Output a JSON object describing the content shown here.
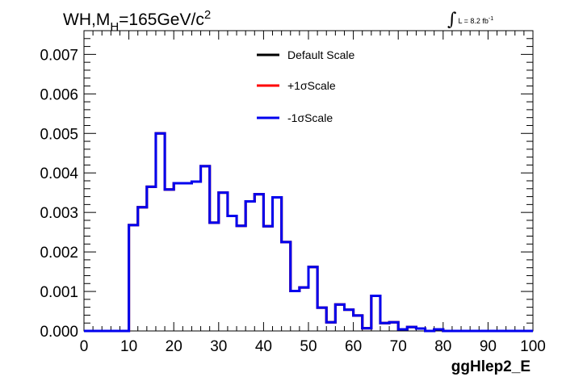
{
  "title": {
    "prefix": "WH,M",
    "sub": "H",
    "main": "=165GeV/c",
    "sup": "2"
  },
  "luminosity": {
    "symbol": "∫",
    "text": "L = 8.2 fb",
    "sup": "-1"
  },
  "chart_data": {
    "type": "line",
    "xlabel": "ggHlep2_E",
    "ylabel": "",
    "xlim": [
      0,
      100
    ],
    "ylim": [
      0,
      0.0076
    ],
    "x_ticks": [
      "0",
      "10",
      "20",
      "30",
      "40",
      "50",
      "60",
      "70",
      "80",
      "90",
      "100"
    ],
    "y_ticks": [
      "0.000",
      "0.001",
      "0.002",
      "0.003",
      "0.004",
      "0.005",
      "0.006",
      "0.007"
    ],
    "bin_width": 2,
    "bin_edges_start": 0,
    "legend_position": "top-center",
    "series": [
      {
        "name": "Default Scale",
        "color": "#000000",
        "values": [
          0,
          0,
          0,
          0,
          0,
          0.00268,
          0.00313,
          0.00365,
          0.005,
          0.00358,
          0.00374,
          0.00374,
          0.00378,
          0.00417,
          0.00274,
          0.0035,
          0.00291,
          0.00266,
          0.00328,
          0.00346,
          0.00265,
          0.00338,
          0.00225,
          0.00101,
          0.0011,
          0.00162,
          0.00059,
          0.00022,
          0.00067,
          0.00054,
          0.00039,
          7e-05,
          0.00089,
          0.0002,
          0.00022,
          4e-05,
          0.0001,
          6e-05,
          0,
          4e-05,
          0,
          0,
          0,
          0,
          0,
          0,
          0,
          0,
          0,
          0
        ]
      },
      {
        "name": "+1σScale",
        "color": "#ff0000",
        "values": [
          0,
          0,
          0,
          0,
          0,
          0.00268,
          0.00313,
          0.00365,
          0.005,
          0.00358,
          0.00374,
          0.00374,
          0.00378,
          0.00417,
          0.00274,
          0.0035,
          0.00291,
          0.00266,
          0.00328,
          0.00346,
          0.00265,
          0.00338,
          0.00225,
          0.00101,
          0.0011,
          0.00162,
          0.00059,
          0.00022,
          0.00067,
          0.00054,
          0.00039,
          7e-05,
          0.00089,
          0.0002,
          0.00022,
          4e-05,
          0.0001,
          6e-05,
          0,
          4e-05,
          0,
          0,
          0,
          0,
          0,
          0,
          0,
          0,
          0,
          0
        ]
      },
      {
        "name": "-1σScale",
        "color": "#0000ee",
        "values": [
          0,
          0,
          0,
          0,
          0,
          0.00268,
          0.00313,
          0.00365,
          0.005,
          0.00358,
          0.00374,
          0.00374,
          0.00378,
          0.00417,
          0.00274,
          0.0035,
          0.00291,
          0.00266,
          0.00328,
          0.00346,
          0.00265,
          0.00338,
          0.00225,
          0.00101,
          0.0011,
          0.00162,
          0.00059,
          0.00022,
          0.00067,
          0.00054,
          0.00039,
          7e-05,
          0.00089,
          0.0002,
          0.00022,
          4e-05,
          0.0001,
          6e-05,
          0,
          4e-05,
          0,
          0,
          0,
          0,
          0,
          0,
          0,
          0,
          0,
          0
        ]
      }
    ]
  }
}
